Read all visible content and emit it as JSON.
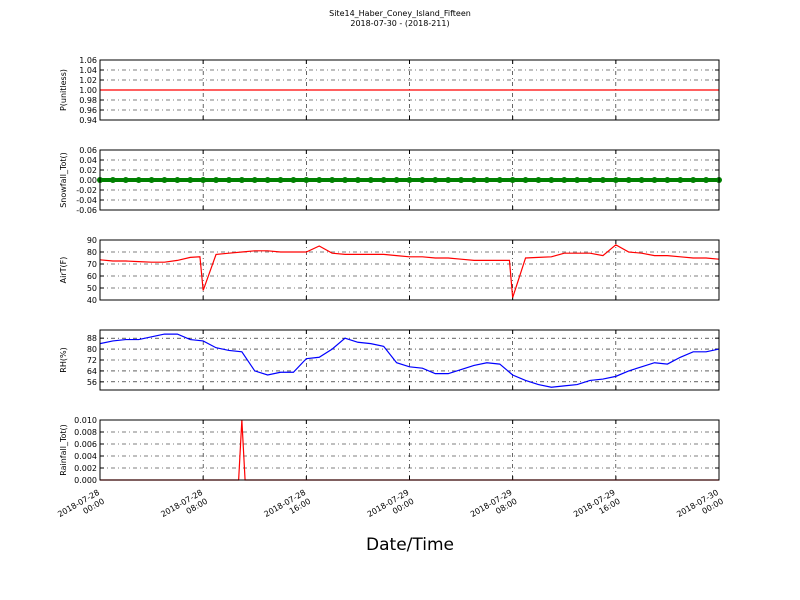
{
  "title": "Site14_Haber_Coney_Island_Fifteen",
  "subtitle": "2018-07-30 - (2018-211)",
  "xlabel": "Date/Time",
  "chart_data": [
    {
      "type": "line",
      "ylabel": "P(unitless)",
      "color": "#ff0000",
      "grid": true,
      "xlim": [
        "2018-07-28 00:00",
        "2018-07-30 00:00"
      ],
      "x": [
        "2018-07-28 00:00",
        "2018-07-30 00:00"
      ],
      "values": [
        1,
        1
      ],
      "ylim": [
        0.94,
        1.06
      ],
      "yticks": [
        0.94,
        0.96,
        0.98,
        {
          "value": 1,
          "label": "1.00"
        },
        1.02,
        1.04,
        1.06
      ]
    },
    {
      "type": "scatter",
      "ylabel": "Snowfall_Tot()",
      "color": "#008000",
      "grid": true,
      "xlim": [
        "2018-07-28 00:00",
        "2018-07-30 00:00"
      ],
      "x": [
        "2018-07-28 00:00",
        "2018-07-28 01:00",
        "2018-07-28 02:00",
        "2018-07-28 03:00",
        "2018-07-28 04:00",
        "2018-07-28 05:00",
        "2018-07-28 06:00",
        "2018-07-28 07:00",
        "2018-07-28 08:00",
        "2018-07-28 09:00",
        "2018-07-28 10:00",
        "2018-07-28 11:00",
        "2018-07-28 12:00",
        "2018-07-28 13:00",
        "2018-07-28 14:00",
        "2018-07-28 15:00",
        "2018-07-28 16:00",
        "2018-07-28 17:00",
        "2018-07-28 18:00",
        "2018-07-28 19:00",
        "2018-07-28 20:00",
        "2018-07-28 21:00",
        "2018-07-28 22:00",
        "2018-07-28 23:00",
        "2018-07-29 00:00",
        "2018-07-29 01:00",
        "2018-07-29 02:00",
        "2018-07-29 03:00",
        "2018-07-29 04:00",
        "2018-07-29 05:00",
        "2018-07-29 06:00",
        "2018-07-29 07:00",
        "2018-07-29 08:00",
        "2018-07-29 09:00",
        "2018-07-29 10:00",
        "2018-07-29 11:00",
        "2018-07-29 12:00",
        "2018-07-29 13:00",
        "2018-07-29 14:00",
        "2018-07-29 15:00",
        "2018-07-29 16:00",
        "2018-07-29 17:00",
        "2018-07-29 18:00",
        "2018-07-29 19:00",
        "2018-07-29 20:00",
        "2018-07-29 21:00",
        "2018-07-29 22:00",
        "2018-07-29 23:00",
        "2018-07-30 00:00"
      ],
      "values": [
        0,
        0,
        0,
        0,
        0,
        0,
        0,
        0,
        0,
        0,
        0,
        0,
        0,
        0,
        0,
        0,
        0,
        0,
        0,
        0,
        0,
        0,
        0,
        0,
        0,
        0,
        0,
        0,
        0,
        0,
        0,
        0,
        0,
        0,
        0,
        0,
        0,
        0,
        0,
        0,
        0,
        0,
        0,
        0,
        0,
        0,
        0,
        0,
        0
      ],
      "ylim": [
        -0.06,
        0.06
      ],
      "yticks": [
        -0.06,
        -0.04,
        -0.02,
        {
          "value": 0,
          "label": "0.00"
        },
        0.02,
        0.04,
        0.06
      ]
    },
    {
      "type": "line",
      "ylabel": "AirT(F)",
      "color": "#ff0000",
      "grid": true,
      "xlim": [
        "2018-07-28 00:00",
        "2018-07-30 00:00"
      ],
      "x": [
        "2018-07-28 00:00",
        "2018-07-28 01:00",
        "2018-07-28 02:00",
        "2018-07-28 03:00",
        "2018-07-28 04:00",
        "2018-07-28 05:00",
        "2018-07-28 06:00",
        "2018-07-28 07:00",
        "2018-07-28 07:45",
        "2018-07-28 08:00",
        "2018-07-28 09:00",
        "2018-07-28 10:00",
        "2018-07-28 11:00",
        "2018-07-28 12:00",
        "2018-07-28 13:00",
        "2018-07-28 14:00",
        "2018-07-28 15:00",
        "2018-07-28 16:00",
        "2018-07-28 17:00",
        "2018-07-28 18:00",
        "2018-07-28 19:00",
        "2018-07-28 20:00",
        "2018-07-28 21:00",
        "2018-07-28 22:00",
        "2018-07-28 23:00",
        "2018-07-29 00:00",
        "2018-07-29 01:00",
        "2018-07-29 02:00",
        "2018-07-29 03:00",
        "2018-07-29 04:00",
        "2018-07-29 05:00",
        "2018-07-29 06:00",
        "2018-07-29 07:00",
        "2018-07-29 07:45",
        "2018-07-29 08:00",
        "2018-07-29 09:00",
        "2018-07-29 10:00",
        "2018-07-29 11:00",
        "2018-07-29 12:00",
        "2018-07-29 13:00",
        "2018-07-29 14:00",
        "2018-07-29 15:00",
        "2018-07-29 16:00",
        "2018-07-29 17:00",
        "2018-07-29 18:00",
        "2018-07-29 19:00",
        "2018-07-29 20:00",
        "2018-07-29 21:00",
        "2018-07-29 22:00",
        "2018-07-29 23:00",
        "2018-07-30 00:00"
      ],
      "values": [
        73.5,
        72.5,
        72.5,
        72,
        71.5,
        71.5,
        73,
        75.5,
        76,
        48,
        78,
        79,
        80,
        81,
        81,
        80,
        80,
        80,
        85,
        79,
        78,
        78,
        78,
        78,
        77,
        76,
        76,
        75,
        75,
        74,
        73,
        73,
        73,
        73,
        42,
        75,
        75.5,
        76,
        79,
        79,
        79,
        77,
        86,
        80,
        79,
        77,
        77,
        76,
        75,
        75,
        74
      ],
      "ylim": [
        40,
        90
      ],
      "yticks": [
        40,
        50,
        60,
        70,
        80,
        90
      ]
    },
    {
      "type": "line",
      "ylabel": "RH(%)",
      "color": "#0000ff",
      "grid": true,
      "xlim": [
        "2018-07-28 00:00",
        "2018-07-30 00:00"
      ],
      "x": [
        "2018-07-28 00:00",
        "2018-07-28 01:00",
        "2018-07-28 02:00",
        "2018-07-28 03:00",
        "2018-07-28 04:00",
        "2018-07-28 05:00",
        "2018-07-28 06:00",
        "2018-07-28 07:00",
        "2018-07-28 08:00",
        "2018-07-28 09:00",
        "2018-07-28 10:00",
        "2018-07-28 11:00",
        "2018-07-28 12:00",
        "2018-07-28 13:00",
        "2018-07-28 14:00",
        "2018-07-28 15:00",
        "2018-07-28 16:00",
        "2018-07-28 17:00",
        "2018-07-28 18:00",
        "2018-07-28 19:00",
        "2018-07-28 20:00",
        "2018-07-28 21:00",
        "2018-07-28 22:00",
        "2018-07-28 23:00",
        "2018-07-29 00:00",
        "2018-07-29 01:00",
        "2018-07-29 02:00",
        "2018-07-29 03:00",
        "2018-07-29 04:00",
        "2018-07-29 05:00",
        "2018-07-29 06:00",
        "2018-07-29 07:00",
        "2018-07-29 08:00",
        "2018-07-29 09:00",
        "2018-07-29 10:00",
        "2018-07-29 11:00",
        "2018-07-29 12:00",
        "2018-07-29 13:00",
        "2018-07-29 14:00",
        "2018-07-29 15:00",
        "2018-07-29 16:00",
        "2018-07-29 17:00",
        "2018-07-29 18:00",
        "2018-07-29 19:00",
        "2018-07-29 20:00",
        "2018-07-29 21:00",
        "2018-07-29 22:00",
        "2018-07-29 23:00",
        "2018-07-30 00:00"
      ],
      "values": [
        84,
        86,
        87,
        87,
        89,
        91,
        91,
        87,
        86,
        81,
        79,
        78,
        64,
        61,
        63,
        63,
        73,
        74,
        80,
        88,
        85,
        84,
        82,
        70,
        67,
        66,
        62,
        62,
        65,
        68,
        70,
        69,
        61,
        57,
        54,
        52,
        53,
        54,
        57,
        58,
        60,
        64,
        67,
        70,
        69,
        74,
        78,
        78,
        80
      ],
      "ylim": [
        50,
        94
      ],
      "yticks": [
        56,
        64,
        72,
        80,
        88
      ]
    },
    {
      "type": "line",
      "ylabel": "Rainfall_Tot()",
      "color": "#ff0000",
      "grid": true,
      "xlim": [
        "2018-07-28 00:00",
        "2018-07-30 00:00"
      ],
      "xticks": [
        "2018-07-28 00:00",
        "2018-07-28 08:00",
        "2018-07-28 16:00",
        "2018-07-29 00:00",
        "2018-07-29 08:00",
        "2018-07-29 16:00",
        "2018-07-30 00:00"
      ],
      "x": [
        "2018-07-28 00:00",
        "2018-07-28 10:45",
        "2018-07-28 11:00",
        "2018-07-28 11:15",
        "2018-07-30 00:00"
      ],
      "values": [
        0,
        0,
        0.01,
        0,
        0
      ],
      "ylim": [
        0,
        0.01
      ],
      "yticks": [
        {
          "value": 0,
          "label": "0.000"
        },
        0.002,
        0.004,
        0.006,
        0.008,
        {
          "value": 0.01,
          "label": "0.010"
        }
      ]
    }
  ]
}
